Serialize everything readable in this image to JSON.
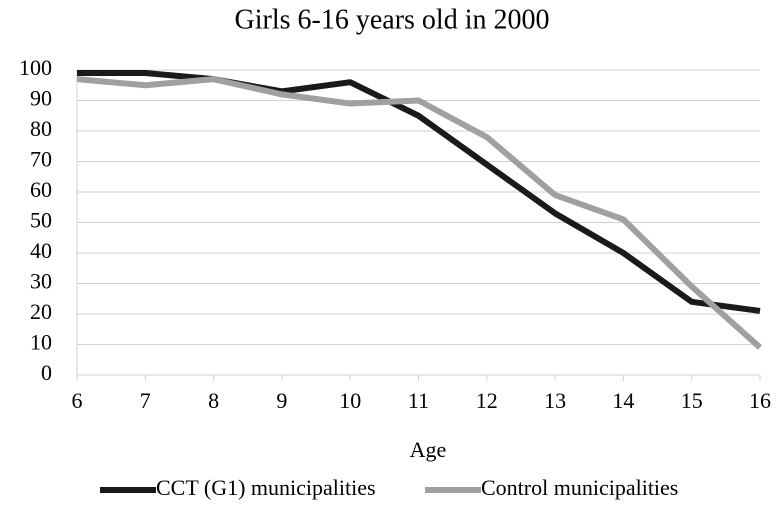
{
  "chart_data": {
    "type": "line",
    "title": "Girls 6-16 years old in 2000",
    "x_label": "Age",
    "x": [
      6,
      7,
      8,
      9,
      10,
      11,
      12,
      13,
      14,
      15,
      16
    ],
    "series": [
      {
        "name": "CCT (G1) municipalities",
        "color": "#1a1a1a",
        "values": [
          99,
          99,
          97,
          93,
          96,
          85,
          69,
          53,
          40,
          24,
          21
        ]
      },
      {
        "name": "Control municipalities",
        "color": "#a0a0a0",
        "values": [
          97,
          95,
          97,
          92,
          89,
          90,
          78,
          59,
          51,
          29,
          9
        ]
      }
    ],
    "xlim": [
      6,
      16
    ],
    "xticks": [
      6,
      7,
      8,
      9,
      10,
      11,
      12,
      13,
      14,
      15,
      16
    ],
    "ylim": [
      0,
      100
    ],
    "yticks": [
      0,
      10,
      20,
      30,
      40,
      50,
      60,
      70,
      80,
      90,
      100
    ],
    "grid": true,
    "legend": "bottom"
  }
}
